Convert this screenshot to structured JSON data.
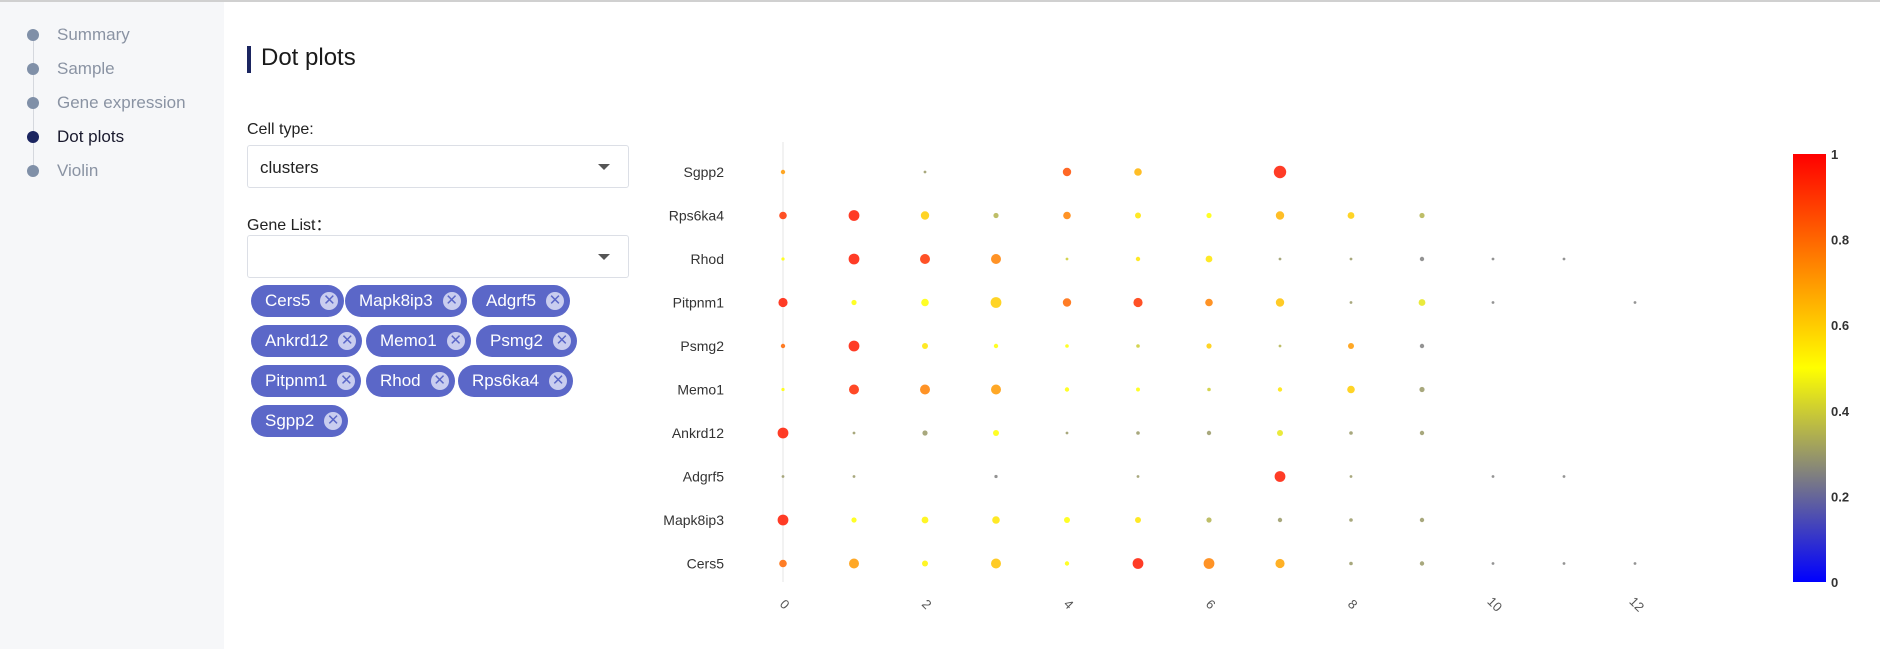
{
  "sidebar": {
    "items": [
      {
        "label": "Summary",
        "active": false
      },
      {
        "label": "Sample",
        "active": false
      },
      {
        "label": "Gene expression",
        "active": false
      },
      {
        "label": "Dot plots",
        "active": true
      },
      {
        "label": "Violin",
        "active": false
      }
    ]
  },
  "page": {
    "title": "Dot plots"
  },
  "cell_type": {
    "label": "Cell type:",
    "value": "clusters"
  },
  "gene_list": {
    "label": "Gene List：",
    "value": "",
    "tags": [
      "Cers5",
      "Mapk8ip3",
      "Adgrf5",
      "Ankrd12",
      "Memo1",
      "Psmg2",
      "Pitpnm1",
      "Rhod",
      "Rps6ka4",
      "Sgpp2"
    ],
    "close_icon": "close-circle-icon"
  },
  "colors": {
    "accent": "#1b2560",
    "tag": "#5b67c8"
  },
  "chart_data": {
    "type": "scatter",
    "title": "",
    "xlabel": "",
    "ylabel": "",
    "x_categories": [
      0,
      1,
      2,
      3,
      4,
      5,
      6,
      7,
      8,
      9,
      10,
      11,
      12
    ],
    "x_tick_labels": [
      "0",
      "2",
      "4",
      "6",
      "8",
      "10",
      "12"
    ],
    "genes": [
      "Cers5",
      "Mapk8ip3",
      "Adgrf5",
      "Ankrd12",
      "Memo1",
      "Psmg2",
      "Pitpnm1",
      "Rhod",
      "Rps6ka4",
      "Sgpp2"
    ],
    "color_scale": {
      "min": 0,
      "max": 1,
      "ticks": [
        "0",
        "0.2",
        "0.4",
        "0.6",
        "0.8",
        "1"
      ],
      "colors": [
        "#0000ff",
        "#ffff00",
        "#ff0000"
      ]
    },
    "legend_position": "right",
    "grid": false,
    "points": [
      {
        "gene": "Sgpp2",
        "cluster": 0,
        "size": 0.15,
        "value": 0.7
      },
      {
        "gene": "Sgpp2",
        "cluster": 2,
        "size": 0.05,
        "value": 0.3
      },
      {
        "gene": "Sgpp2",
        "cluster": 4,
        "size": 0.4,
        "value": 0.85
      },
      {
        "gene": "Sgpp2",
        "cluster": 5,
        "size": 0.35,
        "value": 0.65
      },
      {
        "gene": "Sgpp2",
        "cluster": 7,
        "size": 0.65,
        "value": 0.95
      },
      {
        "gene": "Rps6ka4",
        "cluster": 0,
        "size": 0.35,
        "value": 0.9
      },
      {
        "gene": "Rps6ka4",
        "cluster": 1,
        "size": 0.55,
        "value": 0.95
      },
      {
        "gene": "Rps6ka4",
        "cluster": 2,
        "size": 0.4,
        "value": 0.6
      },
      {
        "gene": "Rps6ka4",
        "cluster": 3,
        "size": 0.2,
        "value": 0.35
      },
      {
        "gene": "Rps6ka4",
        "cluster": 4,
        "size": 0.35,
        "value": 0.75
      },
      {
        "gene": "Rps6ka4",
        "cluster": 5,
        "size": 0.25,
        "value": 0.55
      },
      {
        "gene": "Rps6ka4",
        "cluster": 6,
        "size": 0.2,
        "value": 0.5
      },
      {
        "gene": "Rps6ka4",
        "cluster": 7,
        "size": 0.4,
        "value": 0.65
      },
      {
        "gene": "Rps6ka4",
        "cluster": 8,
        "size": 0.3,
        "value": 0.6
      },
      {
        "gene": "Rps6ka4",
        "cluster": 9,
        "size": 0.2,
        "value": 0.35
      },
      {
        "gene": "Rhod",
        "cluster": 0,
        "size": 0.08,
        "value": 0.5
      },
      {
        "gene": "Rhod",
        "cluster": 1,
        "size": 0.55,
        "value": 0.95
      },
      {
        "gene": "Rhod",
        "cluster": 2,
        "size": 0.5,
        "value": 0.9
      },
      {
        "gene": "Rhod",
        "cluster": 3,
        "size": 0.5,
        "value": 0.75
      },
      {
        "gene": "Rhod",
        "cluster": 4,
        "size": 0.05,
        "value": 0.4
      },
      {
        "gene": "Rhod",
        "cluster": 5,
        "size": 0.15,
        "value": 0.55
      },
      {
        "gene": "Rhod",
        "cluster": 6,
        "size": 0.3,
        "value": 0.55
      },
      {
        "gene": "Rhod",
        "cluster": 7,
        "size": 0.05,
        "value": 0.3
      },
      {
        "gene": "Rhod",
        "cluster": 8,
        "size": 0.05,
        "value": 0.3
      },
      {
        "gene": "Rhod",
        "cluster": 9,
        "size": 0.15,
        "value": 0.25
      },
      {
        "gene": "Rhod",
        "cluster": 10,
        "size": 0.05,
        "value": 0.25
      },
      {
        "gene": "Rhod",
        "cluster": 11,
        "size": 0.05,
        "value": 0.25
      },
      {
        "gene": "Pitpnm1",
        "cluster": 0,
        "size": 0.45,
        "value": 0.95
      },
      {
        "gene": "Pitpnm1",
        "cluster": 1,
        "size": 0.2,
        "value": 0.5
      },
      {
        "gene": "Pitpnm1",
        "cluster": 2,
        "size": 0.35,
        "value": 0.5
      },
      {
        "gene": "Pitpnm1",
        "cluster": 3,
        "size": 0.55,
        "value": 0.6
      },
      {
        "gene": "Pitpnm1",
        "cluster": 4,
        "size": 0.4,
        "value": 0.8
      },
      {
        "gene": "Pitpnm1",
        "cluster": 5,
        "size": 0.45,
        "value": 0.9
      },
      {
        "gene": "Pitpnm1",
        "cluster": 6,
        "size": 0.35,
        "value": 0.75
      },
      {
        "gene": "Pitpnm1",
        "cluster": 7,
        "size": 0.4,
        "value": 0.62
      },
      {
        "gene": "Pitpnm1",
        "cluster": 8,
        "size": 0.05,
        "value": 0.3
      },
      {
        "gene": "Pitpnm1",
        "cluster": 9,
        "size": 0.3,
        "value": 0.45
      },
      {
        "gene": "Pitpnm1",
        "cluster": 10,
        "size": 0.05,
        "value": 0.25
      },
      {
        "gene": "Pitpnm1",
        "cluster": 12,
        "size": 0.05,
        "value": 0.25
      },
      {
        "gene": "Psmg2",
        "cluster": 0,
        "size": 0.15,
        "value": 0.8
      },
      {
        "gene": "Psmg2",
        "cluster": 1,
        "size": 0.55,
        "value": 0.95
      },
      {
        "gene": "Psmg2",
        "cluster": 2,
        "size": 0.25,
        "value": 0.55
      },
      {
        "gene": "Psmg2",
        "cluster": 3,
        "size": 0.15,
        "value": 0.5
      },
      {
        "gene": "Psmg2",
        "cluster": 4,
        "size": 0.1,
        "value": 0.5
      },
      {
        "gene": "Psmg2",
        "cluster": 5,
        "size": 0.1,
        "value": 0.4
      },
      {
        "gene": "Psmg2",
        "cluster": 6,
        "size": 0.2,
        "value": 0.6
      },
      {
        "gene": "Psmg2",
        "cluster": 7,
        "size": 0.05,
        "value": 0.35
      },
      {
        "gene": "Psmg2",
        "cluster": 8,
        "size": 0.25,
        "value": 0.7
      },
      {
        "gene": "Psmg2",
        "cluster": 9,
        "size": 0.15,
        "value": 0.25
      },
      {
        "gene": "Memo1",
        "cluster": 0,
        "size": 0.08,
        "value": 0.5
      },
      {
        "gene": "Memo1",
        "cluster": 1,
        "size": 0.5,
        "value": 0.92
      },
      {
        "gene": "Memo1",
        "cluster": 2,
        "size": 0.5,
        "value": 0.75
      },
      {
        "gene": "Memo1",
        "cluster": 3,
        "size": 0.5,
        "value": 0.7
      },
      {
        "gene": "Memo1",
        "cluster": 4,
        "size": 0.15,
        "value": 0.5
      },
      {
        "gene": "Memo1",
        "cluster": 5,
        "size": 0.12,
        "value": 0.5
      },
      {
        "gene": "Memo1",
        "cluster": 6,
        "size": 0.1,
        "value": 0.4
      },
      {
        "gene": "Memo1",
        "cluster": 7,
        "size": 0.15,
        "value": 0.55
      },
      {
        "gene": "Memo1",
        "cluster": 8,
        "size": 0.35,
        "value": 0.6
      },
      {
        "gene": "Memo1",
        "cluster": 9,
        "size": 0.2,
        "value": 0.3
      },
      {
        "gene": "Ankrd12",
        "cluster": 0,
        "size": 0.55,
        "value": 0.95
      },
      {
        "gene": "Ankrd12",
        "cluster": 1,
        "size": 0.05,
        "value": 0.3
      },
      {
        "gene": "Ankrd12",
        "cluster": 2,
        "size": 0.2,
        "value": 0.3
      },
      {
        "gene": "Ankrd12",
        "cluster": 3,
        "size": 0.25,
        "value": 0.5
      },
      {
        "gene": "Ankrd12",
        "cluster": 4,
        "size": 0.05,
        "value": 0.3
      },
      {
        "gene": "Ankrd12",
        "cluster": 5,
        "size": 0.1,
        "value": 0.3
      },
      {
        "gene": "Ankrd12",
        "cluster": 6,
        "size": 0.15,
        "value": 0.3
      },
      {
        "gene": "Ankrd12",
        "cluster": 7,
        "size": 0.25,
        "value": 0.45
      },
      {
        "gene": "Ankrd12",
        "cluster": 8,
        "size": 0.1,
        "value": 0.3
      },
      {
        "gene": "Ankrd12",
        "cluster": 9,
        "size": 0.15,
        "value": 0.3
      },
      {
        "gene": "Adgrf5",
        "cluster": 0,
        "size": 0.05,
        "value": 0.3
      },
      {
        "gene": "Adgrf5",
        "cluster": 1,
        "size": 0.05,
        "value": 0.3
      },
      {
        "gene": "Adgrf5",
        "cluster": 3,
        "size": 0.08,
        "value": 0.25
      },
      {
        "gene": "Adgrf5",
        "cluster": 5,
        "size": 0.05,
        "value": 0.3
      },
      {
        "gene": "Adgrf5",
        "cluster": 7,
        "size": 0.55,
        "value": 0.95
      },
      {
        "gene": "Adgrf5",
        "cluster": 8,
        "size": 0.05,
        "value": 0.3
      },
      {
        "gene": "Adgrf5",
        "cluster": 10,
        "size": 0.05,
        "value": 0.25
      },
      {
        "gene": "Adgrf5",
        "cluster": 11,
        "size": 0.05,
        "value": 0.25
      },
      {
        "gene": "Mapk8ip3",
        "cluster": 0,
        "size": 0.55,
        "value": 0.95
      },
      {
        "gene": "Mapk8ip3",
        "cluster": 1,
        "size": 0.2,
        "value": 0.5
      },
      {
        "gene": "Mapk8ip3",
        "cluster": 2,
        "size": 0.3,
        "value": 0.52
      },
      {
        "gene": "Mapk8ip3",
        "cluster": 3,
        "size": 0.35,
        "value": 0.55
      },
      {
        "gene": "Mapk8ip3",
        "cluster": 4,
        "size": 0.25,
        "value": 0.5
      },
      {
        "gene": "Mapk8ip3",
        "cluster": 5,
        "size": 0.25,
        "value": 0.55
      },
      {
        "gene": "Mapk8ip3",
        "cluster": 6,
        "size": 0.2,
        "value": 0.35
      },
      {
        "gene": "Mapk8ip3",
        "cluster": 7,
        "size": 0.15,
        "value": 0.3
      },
      {
        "gene": "Mapk8ip3",
        "cluster": 8,
        "size": 0.1,
        "value": 0.3
      },
      {
        "gene": "Mapk8ip3",
        "cluster": 9,
        "size": 0.15,
        "value": 0.3
      },
      {
        "gene": "Cers5",
        "cluster": 0,
        "size": 0.35,
        "value": 0.8
      },
      {
        "gene": "Cers5",
        "cluster": 1,
        "size": 0.5,
        "value": 0.7
      },
      {
        "gene": "Cers5",
        "cluster": 2,
        "size": 0.25,
        "value": 0.52
      },
      {
        "gene": "Cers5",
        "cluster": 3,
        "size": 0.5,
        "value": 0.62
      },
      {
        "gene": "Cers5",
        "cluster": 4,
        "size": 0.15,
        "value": 0.5
      },
      {
        "gene": "Cers5",
        "cluster": 5,
        "size": 0.55,
        "value": 0.95
      },
      {
        "gene": "Cers5",
        "cluster": 6,
        "size": 0.55,
        "value": 0.75
      },
      {
        "gene": "Cers5",
        "cluster": 7,
        "size": 0.45,
        "value": 0.68
      },
      {
        "gene": "Cers5",
        "cluster": 8,
        "size": 0.1,
        "value": 0.3
      },
      {
        "gene": "Cers5",
        "cluster": 9,
        "size": 0.15,
        "value": 0.3
      },
      {
        "gene": "Cers5",
        "cluster": 10,
        "size": 0.05,
        "value": 0.25
      },
      {
        "gene": "Cers5",
        "cluster": 11,
        "size": 0.05,
        "value": 0.25
      },
      {
        "gene": "Cers5",
        "cluster": 12,
        "size": 0.05,
        "value": 0.25
      }
    ]
  }
}
